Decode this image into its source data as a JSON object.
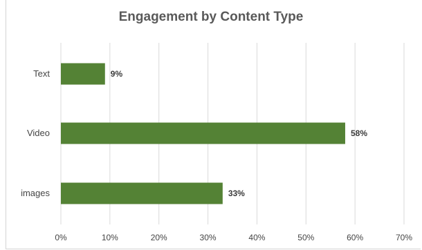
{
  "chart_data": {
    "type": "bar",
    "orientation": "horizontal",
    "title": "Engagement by Content Type",
    "categories": [
      "Text",
      "Video",
      "images"
    ],
    "values": [
      9,
      58,
      33
    ],
    "data_labels": [
      "9%",
      "58%",
      "33%"
    ],
    "xlim": [
      0,
      70
    ],
    "x_ticks": [
      0,
      10,
      20,
      30,
      40,
      50,
      60,
      70
    ],
    "x_tick_labels": [
      "0%",
      "10%",
      "20%",
      "30%",
      "40%",
      "50%",
      "60%",
      "70%"
    ],
    "grid": "vertical",
    "legend": "none",
    "bar_color": "#548235",
    "grid_color": "#d9d9d9"
  }
}
